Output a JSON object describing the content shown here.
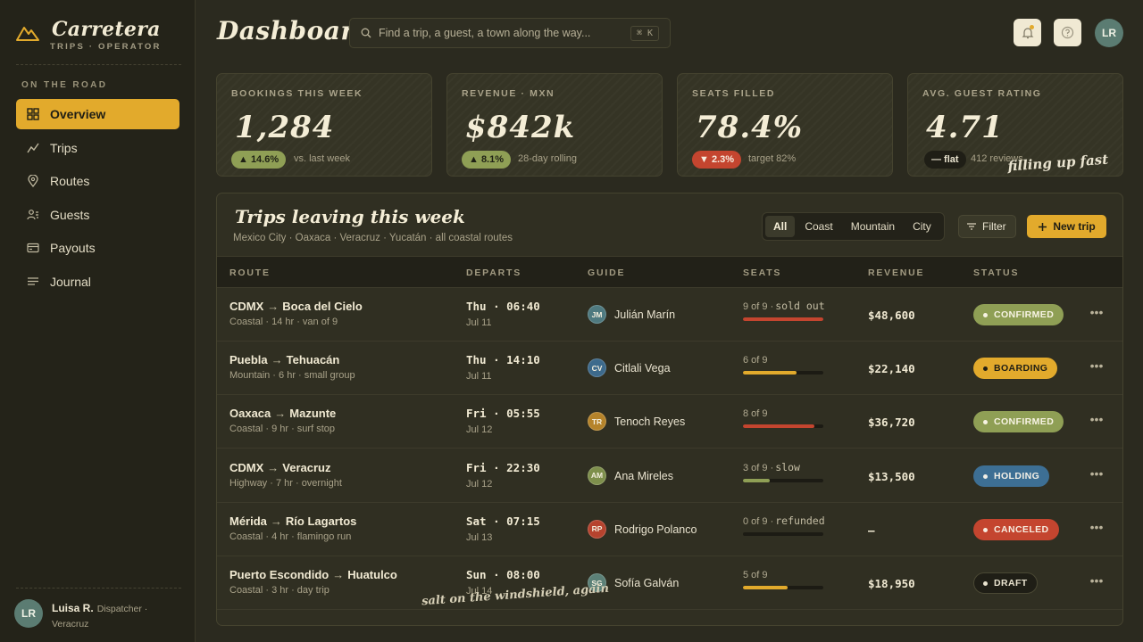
{
  "brand": {
    "title": "Carretera",
    "subtitle": "TRIPS · OPERATOR"
  },
  "sidebar": {
    "section_label": "ON THE ROAD",
    "items": [
      {
        "label": "Overview",
        "icon": "grid-icon",
        "active": true
      },
      {
        "label": "Trips",
        "icon": "trend-icon",
        "active": false
      },
      {
        "label": "Routes",
        "icon": "pin-icon",
        "active": false
      },
      {
        "label": "Guests",
        "icon": "guests-icon",
        "active": false
      },
      {
        "label": "Payouts",
        "icon": "wallet-icon",
        "active": false
      },
      {
        "label": "Journal",
        "icon": "journal-icon",
        "active": false
      }
    ],
    "user": {
      "initials": "LR",
      "name": "Luisa R.",
      "role": "Dispatcher · Veracruz"
    }
  },
  "header": {
    "title": "Dashboard",
    "search_placeholder": "Find a trip, a guest, a town along the way...",
    "search_shortcut": "⌘ K",
    "avatar_initials": "LR"
  },
  "stats": [
    {
      "label": "BOOKINGS THIS WEEK",
      "value": "1,284",
      "delta": "▲ 14.6%",
      "delta_type": "up",
      "note": "vs. last week"
    },
    {
      "label": "REVENUE · MXN",
      "value": "$842k",
      "delta": "▲ 8.1%",
      "delta_type": "up",
      "note": "28-day rolling"
    },
    {
      "label": "SEATS FILLED",
      "value": "78.4%",
      "delta": "▼ 2.3%",
      "delta_type": "down",
      "note": "target 82%"
    },
    {
      "label": "AVG. GUEST RATING",
      "value": "4.71",
      "delta": "— flat",
      "delta_type": "flat",
      "note": "412 reviews"
    }
  ],
  "scribbles": {
    "stats": "filling up fast —",
    "table": "salt on the windshield, again"
  },
  "trips": {
    "title": "Trips leaving this week",
    "subtitle": "Mexico City · Oaxaca · Veracruz · Yucatán · all coastal routes",
    "filters": [
      {
        "label": "All",
        "active": true
      },
      {
        "label": "Coast",
        "active": false
      },
      {
        "label": "Mountain",
        "active": false
      },
      {
        "label": "City",
        "active": false
      }
    ],
    "filter_label": "Filter",
    "new_label": "New trip",
    "columns": [
      "ROUTE",
      "DEPARTS",
      "GUIDE",
      "SEATS",
      "REVENUE",
      "STATUS"
    ],
    "rows": [
      {
        "from": "CDMX",
        "to": "Boca del Cielo",
        "meta": "Coastal · 14 hr · van of 9",
        "time": "Thu · 06:40",
        "date": "Jul 11",
        "guide_initials": "JM",
        "guide": "Julián Marín",
        "guide_color": "#4f7a80",
        "seats": "9 of 9 ·",
        "seats_note": "sold out",
        "fill": 1.0,
        "fill_color": "#c4452f",
        "revenue": "$48,600",
        "status": "CONFIRMED",
        "status_bg": "#8f9f55",
        "status_fg": "#f7f3e3"
      },
      {
        "from": "Puebla",
        "to": "Tehuacán",
        "meta": "Mountain · 6 hr · small group",
        "time": "Thu · 14:10",
        "date": "Jul 11",
        "guide_initials": "CV",
        "guide": "Citlali Vega",
        "guide_color": "#3d6a8c",
        "seats": "6 of 9",
        "seats_note": "",
        "fill": 0.667,
        "fill_color": "#e2aa2c",
        "revenue": "$22,140",
        "status": "BOARDING",
        "status_bg": "#e2aa2c",
        "status_fg": "#1f1e15"
      },
      {
        "from": "Oaxaca",
        "to": "Mazunte",
        "meta": "Coastal · 9 hr · surf stop",
        "time": "Fri · 05:55",
        "date": "Jul 12",
        "guide_initials": "TR",
        "guide": "Tenoch Reyes",
        "guide_color": "#b5832a",
        "seats": "8 of 9",
        "seats_note": "",
        "fill": 0.889,
        "fill_color": "#c4452f",
        "revenue": "$36,720",
        "status": "CONFIRMED",
        "status_bg": "#8f9f55",
        "status_fg": "#f7f3e3"
      },
      {
        "from": "CDMX",
        "to": "Veracruz",
        "meta": "Highway · 7 hr · overnight",
        "time": "Fri · 22:30",
        "date": "Jul 12",
        "guide_initials": "AM",
        "guide": "Ana Mireles",
        "guide_color": "#7e8f4c",
        "seats": "3 of 9 ·",
        "seats_note": "slow",
        "fill": 0.333,
        "fill_color": "#8f9f55",
        "revenue": "$13,500",
        "status": "HOLDING",
        "status_bg": "#3d6f94",
        "status_fg": "#f2efe6"
      },
      {
        "from": "Mérida",
        "to": "Río Lagartos",
        "meta": "Coastal · 4 hr · flamingo run",
        "time": "Sat · 07:15",
        "date": "Jul 13",
        "guide_initials": "RP",
        "guide": "Rodrigo Polanco",
        "guide_color": "#b6432e",
        "seats": "0 of 9 ·",
        "seats_note": "refunded",
        "fill": 0.0,
        "fill_color": "#8f9f55",
        "revenue": "—",
        "status": "CANCELED",
        "status_bg": "#c4452f",
        "status_fg": "#f7ecdf"
      },
      {
        "from": "Puerto Escondido",
        "to": "Huatulco",
        "meta": "Coastal · 3 hr · day trip",
        "time": "Sun · 08:00",
        "date": "Jul 14",
        "guide_initials": "SG",
        "guide": "Sofía Galván",
        "guide_color": "#5b8077",
        "seats": "5 of 9",
        "seats_note": "",
        "fill": 0.556,
        "fill_color": "#e2aa2c",
        "revenue": "$18,950",
        "status": "DRAFT",
        "status_bg": "#1f1e16",
        "status_fg": "#e9e3cf"
      }
    ]
  }
}
